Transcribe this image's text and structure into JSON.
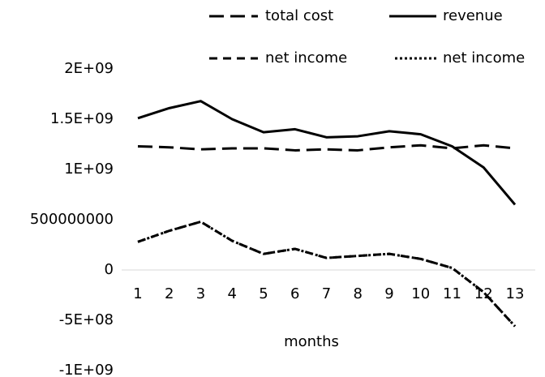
{
  "chart_data": {
    "type": "line",
    "x_label": "months",
    "categories": [
      "1",
      "2",
      "3",
      "4",
      "5",
      "6",
      "7",
      "8",
      "9",
      "10",
      "11",
      "12",
      "13"
    ],
    "series": [
      {
        "name": "total cost",
        "color": "#000000",
        "dash": "18,8",
        "values": [
          1230000000,
          1220000000,
          1200000000,
          1210000000,
          1210000000,
          1190000000,
          1200000000,
          1190000000,
          1220000000,
          1240000000,
          1210000000,
          1240000000,
          1210000000
        ]
      },
      {
        "name": "revenue",
        "color": "#000000",
        "dash": "none",
        "values": [
          1510000000,
          1610000000,
          1680000000,
          1500000000,
          1370000000,
          1400000000,
          1320000000,
          1330000000,
          1380000000,
          1350000000,
          1230000000,
          1020000000,
          650000000
        ]
      },
      {
        "name": "net income",
        "color": "#000000",
        "dash": "10,7",
        "values": [
          280000000,
          390000000,
          480000000,
          290000000,
          160000000,
          210000000,
          120000000,
          140000000,
          160000000,
          110000000,
          20000000,
          -220000000,
          -560000000
        ]
      },
      {
        "name": "net income",
        "color": "#000000",
        "dash": "3,3",
        "values": [
          280000000,
          390000000,
          480000000,
          290000000,
          160000000,
          210000000,
          120000000,
          140000000,
          160000000,
          110000000,
          20000000,
          -220000000,
          -560000000
        ]
      }
    ],
    "ylim": [
      -1000000000,
      2000000000
    ],
    "yticks": [
      {
        "value": -1000000000,
        "label": "-1E+09"
      },
      {
        "value": -500000000,
        "label": "-5E+08"
      },
      0,
      500000000,
      {
        "value": 1000000000,
        "label": "1E+09"
      },
      {
        "value": 1500000000,
        "label": "1.5E+09"
      },
      {
        "value": 2000000000,
        "label": "2E+09"
      }
    ],
    "legend": "top",
    "grid": false
  }
}
